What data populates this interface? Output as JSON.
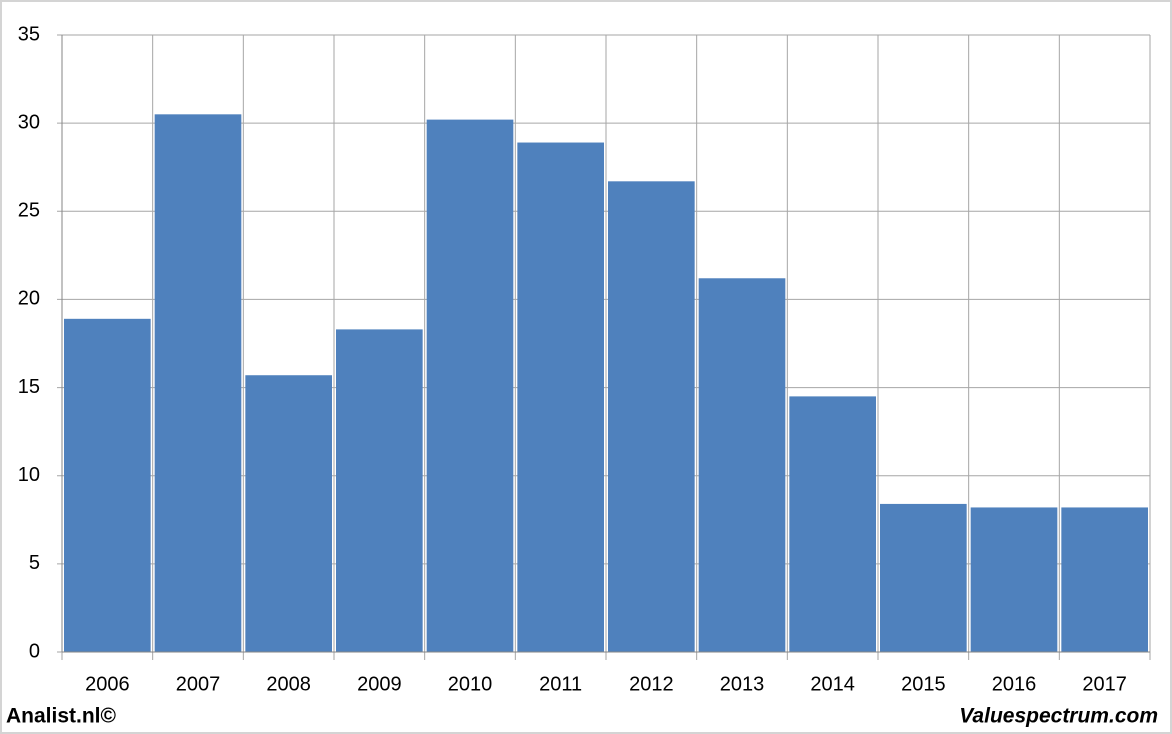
{
  "chart_data": {
    "type": "bar",
    "categories": [
      "2006",
      "2007",
      "2008",
      "2009",
      "2010",
      "2011",
      "2012",
      "2013",
      "2014",
      "2015",
      "2016",
      "2017"
    ],
    "values": [
      18.9,
      30.5,
      15.7,
      18.3,
      30.2,
      28.9,
      26.7,
      21.2,
      14.5,
      8.4,
      8.2,
      8.2
    ],
    "color": "#4f81bd",
    "ylim": [
      0,
      35
    ],
    "yticks": [
      0,
      5,
      10,
      15,
      20,
      25,
      30,
      35
    ],
    "grid": true
  },
  "credits": {
    "left": "Analist.nl©",
    "right": "Valuespectrum.com"
  }
}
